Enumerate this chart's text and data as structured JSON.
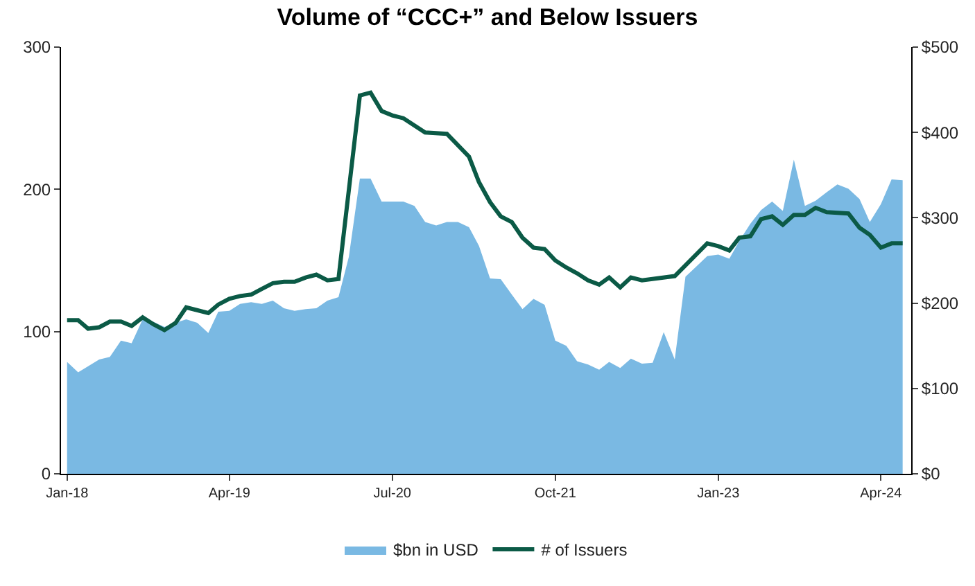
{
  "chart_data": {
    "type": "area",
    "title": "Volume of “CCC+” and Below Issuers",
    "xlim": [
      "2017-12-15",
      "2024-06-25"
    ],
    "xticks": [
      {
        "value": "2018-01",
        "label": "Jan-18"
      },
      {
        "value": "2019-04",
        "label": "Apr-19"
      },
      {
        "value": "2020-07",
        "label": "Jul-20"
      },
      {
        "value": "2021-10",
        "label": "Oct-21"
      },
      {
        "value": "2023-01",
        "label": "Jan-23"
      },
      {
        "value": "2024-04",
        "label": "Apr-24"
      }
    ],
    "ylim": [
      0,
      300
    ],
    "yticks": [
      0,
      100,
      200,
      300
    ],
    "y2lim": [
      0,
      500
    ],
    "y2ticks": [
      {
        "value": 0,
        "label": "$0"
      },
      {
        "value": 100,
        "label": "$100"
      },
      {
        "value": 200,
        "label": "$200"
      },
      {
        "value": 300,
        "label": "$300"
      },
      {
        "value": 400,
        "label": "$400"
      },
      {
        "value": 500,
        "label": "$500"
      }
    ],
    "legend": "bottom",
    "series": [
      {
        "name": "$bn in USD",
        "axis": "y2",
        "color": "#7ab9e3",
        "x": [
          "2018-01",
          "2018-02",
          "2018-03",
          "2018-04",
          "2018-05",
          "2018-06",
          "2018-07",
          "2018-08",
          "2018-09",
          "2018-10",
          "2018-11",
          "2018-12",
          "2019-01",
          "2019-02",
          "2019-03",
          "2019-04",
          "2019-05",
          "2019-06",
          "2019-07",
          "2019-08",
          "2019-09",
          "2019-10",
          "2019-11",
          "2019-12",
          "2020-01",
          "2020-02",
          "2020-03",
          "2020-04",
          "2020-05",
          "2020-06",
          "2020-07",
          "2020-08",
          "2020-09",
          "2020-10",
          "2020-11",
          "2020-12",
          "2021-01",
          "2021-02",
          "2021-03",
          "2021-04",
          "2021-05",
          "2021-06",
          "2021-07",
          "2021-08",
          "2021-09",
          "2021-10",
          "2021-11",
          "2021-12",
          "2022-01",
          "2022-02",
          "2022-03",
          "2022-04",
          "2022-05",
          "2022-06",
          "2022-07",
          "2022-08",
          "2022-09",
          "2022-10",
          "2022-11",
          "2022-12",
          "2023-01",
          "2023-02",
          "2023-03",
          "2023-04",
          "2023-05",
          "2023-06",
          "2023-07",
          "2023-08",
          "2023-09",
          "2023-10",
          "2023-11",
          "2023-12",
          "2024-01",
          "2024-02",
          "2024-03",
          "2024-04",
          "2024-05",
          "2024-06"
        ],
        "values": [
          131,
          119,
          126,
          134,
          137,
          156,
          153,
          181,
          178,
          172,
          177,
          181,
          177,
          165,
          190,
          191,
          199,
          201,
          199,
          203,
          194,
          191,
          193,
          194,
          203,
          207,
          254,
          346,
          346,
          319,
          319,
          319,
          314,
          295,
          291,
          295,
          295,
          289,
          267,
          229,
          228,
          210,
          193,
          205,
          198,
          156,
          150,
          132,
          128,
          122,
          131,
          124,
          135,
          129,
          130,
          166,
          134,
          231,
          243,
          255,
          257,
          252,
          273,
          293,
          309,
          319,
          308,
          368,
          314,
          320,
          330,
          339,
          334,
          322,
          295,
          316,
          345,
          344
        ]
      },
      {
        "name": "# of Issuers",
        "type": "line",
        "axis": "y",
        "color": "#0b5a46",
        "x": [
          "2018-01",
          "2018-02",
          "2018-03",
          "2018-04",
          "2018-05",
          "2018-06",
          "2018-07",
          "2018-08",
          "2018-09",
          "2018-10",
          "2018-11",
          "2018-12",
          "2019-02",
          "2019-03",
          "2019-04",
          "2019-05",
          "2019-06",
          "2019-07",
          "2019-08",
          "2019-09",
          "2019-10",
          "2019-11",
          "2019-12",
          "2020-01",
          "2020-02",
          "2020-04",
          "2020-05",
          "2020-06",
          "2020-07",
          "2020-08",
          "2020-10",
          "2020-12",
          "2021-02",
          "2021-03",
          "2021-04",
          "2021-05",
          "2021-06",
          "2021-07",
          "2021-08",
          "2021-09",
          "2021-10",
          "2021-11",
          "2021-12",
          "2022-01",
          "2022-02",
          "2022-03",
          "2022-04",
          "2022-05",
          "2022-06",
          "2022-09",
          "2022-12",
          "2023-01",
          "2023-02",
          "2023-03",
          "2023-04",
          "2023-05",
          "2023-06",
          "2023-07",
          "2023-08",
          "2023-09",
          "2023-10",
          "2023-11",
          "2024-01",
          "2024-02",
          "2024-03",
          "2024-04",
          "2024-05",
          "2024-06"
        ],
        "values": [
          108,
          108,
          102,
          103,
          107,
          107,
          104,
          110,
          105,
          101,
          106,
          117,
          113,
          119,
          123,
          125,
          126,
          130,
          134,
          135,
          135,
          138,
          140,
          136,
          137,
          266,
          268,
          255,
          252,
          250,
          240,
          239,
          223,
          205,
          191,
          181,
          177,
          166,
          159,
          158,
          150,
          145,
          141,
          136,
          133,
          138,
          131,
          138,
          136,
          139,
          162,
          160,
          157,
          166,
          167,
          179,
          181,
          175,
          182,
          182,
          187,
          184,
          183,
          173,
          168,
          159,
          162,
          162
        ]
      }
    ]
  }
}
